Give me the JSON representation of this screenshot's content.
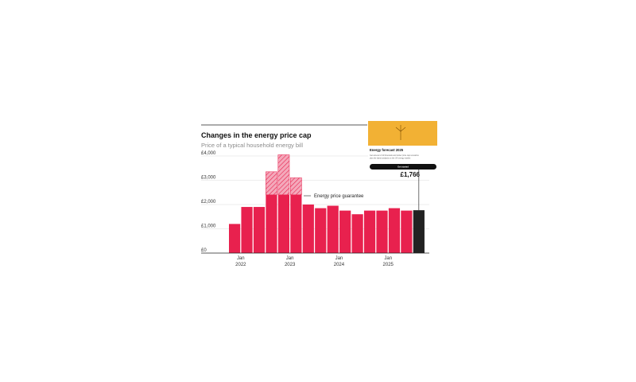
{
  "chart_data": {
    "type": "bar",
    "title": "Changes in the energy price cap",
    "subtitle": "Price of a typical household energy bill",
    "ylim": [
      0,
      4000
    ],
    "yticks": [
      "£4,000",
      "£3,000",
      "£2,000",
      "£1,000",
      "£0"
    ],
    "ytick_values": [
      4000,
      3000,
      2000,
      1000,
      0
    ],
    "xticks": [
      {
        "index": 0.5,
        "line1": "Jan",
        "line2": "2022"
      },
      {
        "index": 4.5,
        "line1": "Jan",
        "line2": "2023"
      },
      {
        "index": 8.5,
        "line1": "Jan",
        "line2": "2024"
      },
      {
        "index": 12.5,
        "line1": "Jan",
        "line2": "2025"
      }
    ],
    "values": [
      1200,
      1900,
      1900,
      2400,
      2400,
      2400,
      2000,
      1850,
      1950,
      1750,
      1600,
      1750,
      1750,
      1850,
      1750,
      1766
    ],
    "cap_values": [
      1200,
      1900,
      1900,
      3350,
      4050,
      3100,
      2000,
      1850,
      1950,
      1750,
      1600,
      1750,
      1750,
      1850,
      1750,
      1766
    ],
    "highlight_index": 15,
    "bar_color": "#e8214e",
    "highlight_color": "#222222",
    "hatch_color": "#e8214e",
    "annotation": "Energy price guarantee",
    "callout_value": "£1,766"
  },
  "promo_card": {
    "title": "Energy forecast 2025",
    "body_line1": "Get access to full forecasts and winter price cap scenarios",
    "body_line2": "plus the latest analysis on the UK energy market",
    "button_label": "Get started",
    "bg_color": "#f2b134"
  }
}
